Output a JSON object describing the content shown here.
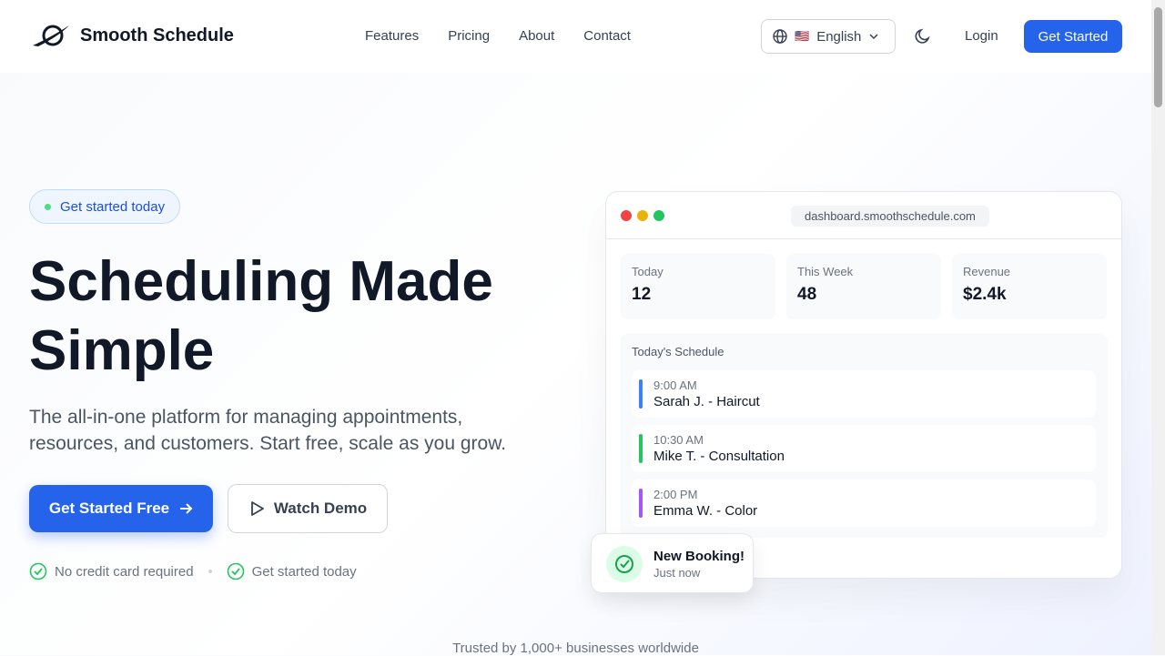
{
  "nav": {
    "brand": "Smooth Schedule",
    "links": [
      "Features",
      "Pricing",
      "About",
      "Contact"
    ],
    "language": "English",
    "login": "Login",
    "get_started": "Get Started"
  },
  "hero": {
    "badge": "Get started today",
    "title_line1": "Scheduling Made",
    "title_line2": "Simple",
    "subtitle": "The all-in-one platform for managing appointments, resources, and customers. Start free, scale as you grow.",
    "cta_primary": "Get Started Free",
    "cta_secondary": "Watch Demo",
    "checks": [
      "No credit card required",
      "Get started today"
    ]
  },
  "dashboard": {
    "url": "dashboard.smoothschedule.com",
    "stats": [
      {
        "label": "Today",
        "value": "12"
      },
      {
        "label": "This Week",
        "value": "48"
      },
      {
        "label": "Revenue",
        "value": "$2.4k"
      }
    ],
    "schedule_title": "Today's Schedule",
    "items": [
      {
        "time": "9:00 AM",
        "name": "Sarah J. - Haircut",
        "color": "#3b82f6"
      },
      {
        "time": "10:30 AM",
        "name": "Mike T. - Consultation",
        "color": "#22c55e"
      },
      {
        "time": "2:00 PM",
        "name": "Emma W. - Color",
        "color": "#a855f7"
      }
    ]
  },
  "toast": {
    "title": "New Booking!",
    "subtitle": "Just now"
  },
  "trusted": "Trusted by 1,000+ businesses worldwide",
  "colors": {
    "primary": "#2563eb"
  }
}
